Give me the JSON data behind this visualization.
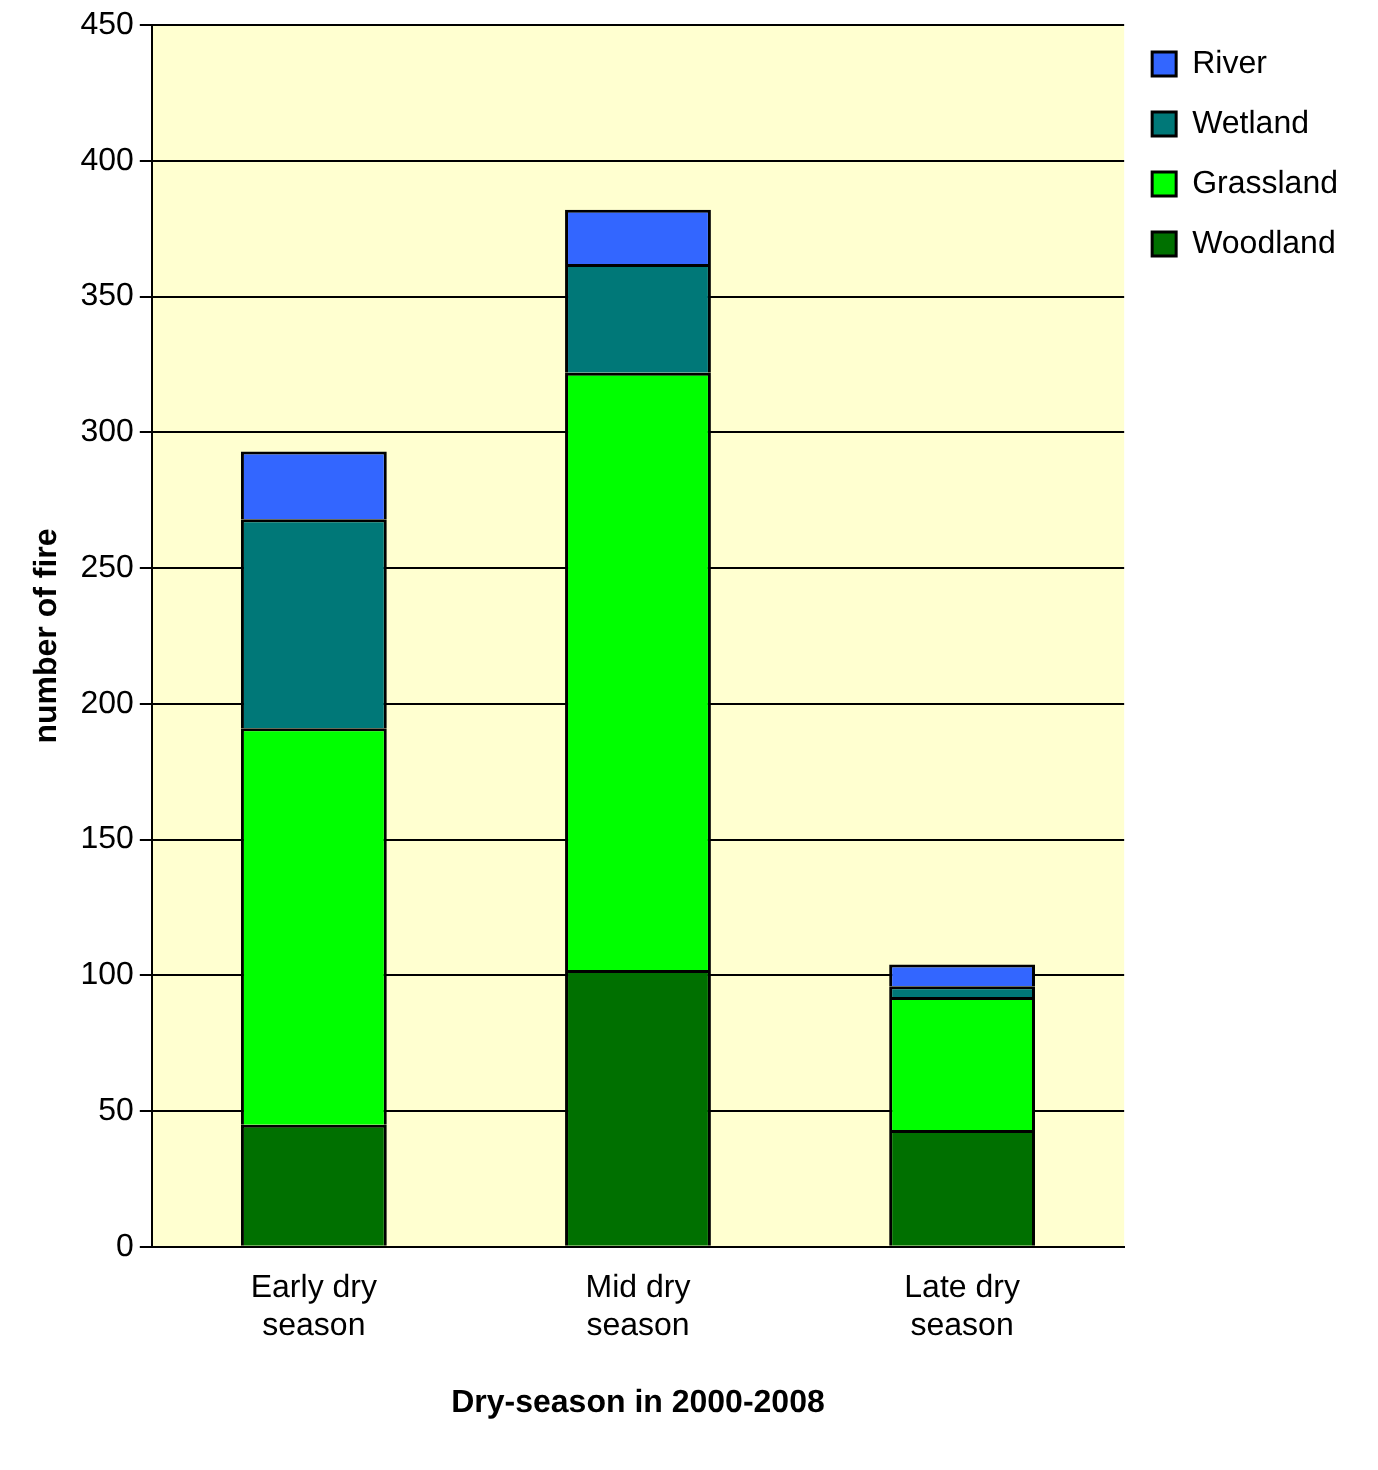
{
  "chart_data": {
    "type": "bar",
    "stacked": true,
    "xlabel": "Dry-season in 2000-2008",
    "ylabel": "number of fire",
    "categories": [
      "Early dry season",
      "Mid dry season",
      "Late dry season"
    ],
    "series": [
      {
        "name": "Woodland",
        "color": "#007000",
        "values": [
          45,
          102,
          43
        ]
      },
      {
        "name": "Grassland",
        "color": "#00ff00",
        "values": [
          146,
          220,
          49
        ]
      },
      {
        "name": "Wetland",
        "color": "#007878",
        "values": [
          77,
          40,
          4
        ]
      },
      {
        "name": "River",
        "color": "#3366ff",
        "values": [
          25,
          20,
          8
        ]
      }
    ],
    "ylim": [
      0,
      450
    ],
    "yticks": [
      0,
      50,
      100,
      150,
      200,
      250,
      300,
      350,
      400,
      450
    ],
    "grid": "y",
    "legend": "right"
  }
}
